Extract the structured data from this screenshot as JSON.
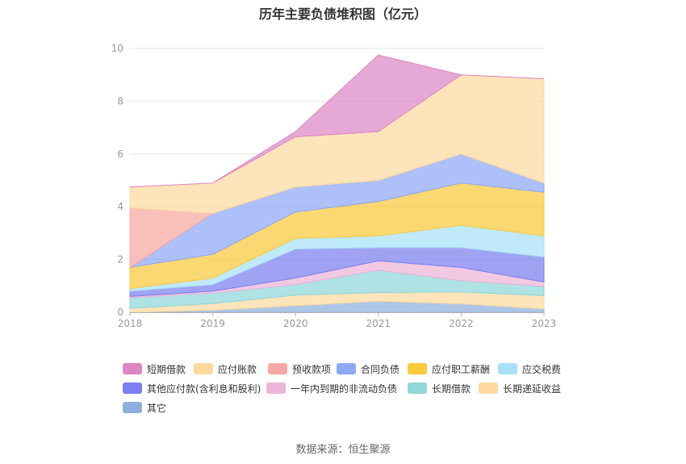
{
  "title": "历年主要负债堆积图（亿元）",
  "source": "数据来源：恒生聚源",
  "chart_data": {
    "type": "area",
    "stacked": true,
    "title": "历年主要负债堆积图（亿元）",
    "xlabel": "",
    "ylabel": "",
    "categories": [
      "2018",
      "2019",
      "2020",
      "2021",
      "2022",
      "2023"
    ],
    "yticks": [
      "0",
      "2",
      "4",
      "6",
      "8",
      "10"
    ],
    "ylim": [
      0,
      10
    ],
    "legend_position": "bottom",
    "series": [
      {
        "name": "其它",
        "color": "#8fb0dc",
        "values": [
          0.0,
          0.08,
          0.25,
          0.42,
          0.32,
          0.13
        ]
      },
      {
        "name": "长期递延收益",
        "color": "#fdd9a0",
        "values": [
          0.15,
          0.25,
          0.4,
          0.33,
          0.45,
          0.5
        ]
      },
      {
        "name": "长期借款",
        "color": "#8fd7d9",
        "values": [
          0.4,
          0.4,
          0.4,
          0.85,
          0.43,
          0.35
        ]
      },
      {
        "name": "一年内到期的非流动负债",
        "color": "#ecb4d8",
        "values": [
          0.05,
          0.07,
          0.25,
          0.35,
          0.5,
          0.17
        ]
      },
      {
        "name": "其他应付款(含利息和股利)",
        "color": "#7b7ff0",
        "values": [
          0.2,
          0.25,
          1.1,
          0.5,
          0.75,
          0.95
        ]
      },
      {
        "name": "应交税费",
        "color": "#a8e0f7",
        "values": [
          0.1,
          0.25,
          0.4,
          0.45,
          0.85,
          0.8
        ]
      },
      {
        "name": "应付职工薪酬",
        "color": "#fbc93c",
        "values": [
          0.8,
          0.9,
          1.0,
          1.3,
          1.6,
          1.65
        ]
      },
      {
        "name": "合同负债",
        "color": "#8ea8f6",
        "values": [
          0.0,
          1.55,
          0.95,
          0.8,
          1.1,
          0.35
        ]
      },
      {
        "name": "预收款项",
        "color": "#f7a7a1",
        "values": [
          2.25,
          0.0,
          0.0,
          0.0,
          0.0,
          0.0
        ]
      },
      {
        "name": "应付账款",
        "color": "#fdd9a0",
        "values": [
          0.8,
          1.15,
          1.9,
          1.85,
          3.0,
          3.95
        ]
      },
      {
        "name": "短期借款",
        "color": "#dd86c4",
        "values": [
          0.0,
          0.0,
          0.2,
          2.9,
          0.0,
          0.0
        ]
      }
    ]
  },
  "legend_items": [
    "短期借款",
    "应付账款",
    "预收款项",
    "合同负债",
    "应付职工薪酬",
    "应交税费",
    "其他应付款(含利息和股利)",
    "一年内到期的非流动负债",
    "长期借款",
    "长期递延收益",
    "其它"
  ]
}
